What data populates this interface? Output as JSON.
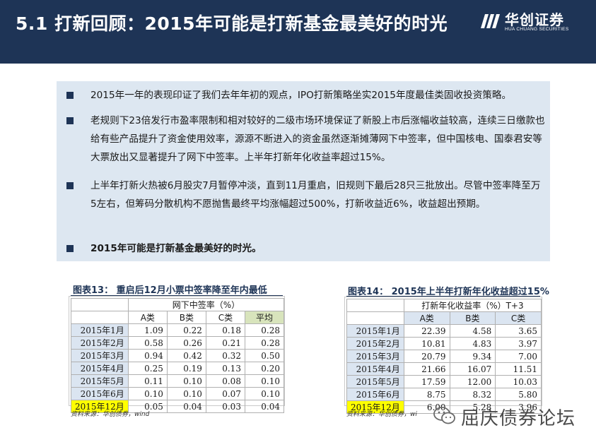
{
  "header": {
    "title": "5.1  打新回顾：2015年可能是打新基金最美好的时光",
    "logo_cn": "华创证券",
    "logo_en": "HUA CHUANG SECURITIES"
  },
  "summary": {
    "bullets": [
      {
        "text": "2015年一年的表现印证了我们去年年初的观点，IPO打新策略坐实2015年度最佳类固收投资策略。",
        "bold": false
      },
      {
        "text": "老规则下23倍发行市盈率限制和相对较好的二级市场环境保证了新股上市后涨幅收益较高，连续三日缴款也给有些产品提升了资金使用效率，源源不断进入的资金虽然逐渐摊薄网下中签率，但中国核电、国泰君安等大票放出又显著提升了网下中签率。上半年打新年化收益率超过15%。",
        "bold": false
      },
      {
        "text": "上半年打新火热被6月股灾7月暂停冲淡，直到11月重启，旧规则下最后28只三批放出。尽管中签率降至万5左右，但筹码分散机构不愿抛售最终平均涨幅超过500%，打新收益近6%，收益超出预期。",
        "bold": false
      },
      {
        "text": "2015年可能是打新基金最美好的时光。",
        "bold": true
      }
    ]
  },
  "figure13": {
    "title": "图表13：  重启后12月小票中签率降至年内最低",
    "header_main": "网下中签率（%）",
    "columns": [
      "A类",
      "B类",
      "C类",
      "平均"
    ],
    "rows": [
      {
        "label": "2015年1月",
        "values": [
          "1.09",
          "0.22",
          "0.18",
          "0.28"
        ]
      },
      {
        "label": "2015年2月",
        "values": [
          "0.58",
          "0.26",
          "0.21",
          "0.28"
        ]
      },
      {
        "label": "2015年3月",
        "values": [
          "0.94",
          "0.42",
          "0.32",
          "0.50"
        ]
      },
      {
        "label": "2015年4月",
        "values": [
          "0.25",
          "0.19",
          "0.13",
          "0.20"
        ]
      },
      {
        "label": "2015年5月",
        "values": [
          "0.11",
          "0.10",
          "0.08",
          "0.10"
        ]
      },
      {
        "label": "2015年6月",
        "values": [
          "0.10",
          "0.10",
          "0.07",
          "0.10"
        ]
      },
      {
        "label": "2015年12月",
        "values": [
          "0.05",
          "0.04",
          "0.03",
          "0.04"
        ],
        "highlight": true
      }
    ],
    "source": "资料来源：华创债券，wind"
  },
  "figure14": {
    "title": "图表14：  2015年上半年打新年化收益超过15%",
    "header_main": "打新年化收益率（%）T+3",
    "columns": [
      "A类",
      "B类",
      "C类"
    ],
    "rows": [
      {
        "label": "2015年1月",
        "values": [
          "22.39",
          "4.58",
          "3.65"
        ]
      },
      {
        "label": "2015年2月",
        "values": [
          "10.81",
          "4.83",
          "3.97"
        ]
      },
      {
        "label": "2015年3月",
        "values": [
          "20.79",
          "9.34",
          "7.00"
        ]
      },
      {
        "label": "2015年4月",
        "values": [
          "21.66",
          "16.07",
          "11.51"
        ]
      },
      {
        "label": "2015年5月",
        "values": [
          "17.59",
          "12.00",
          "10.03"
        ]
      },
      {
        "label": "2015年6月",
        "values": [
          "8.75",
          "8.32",
          "5.80"
        ]
      },
      {
        "label": "2015年12月",
        "values": [
          "6.00",
          "5.28",
          "3.96"
        ],
        "highlight": true
      }
    ],
    "source": "资料来源：华创债券，wi"
  },
  "watermark": {
    "text": "屈庆债券论坛",
    "icon": "wechat-icon"
  },
  "colors": {
    "header_bg": "#1e3456",
    "summary_bg": "#dde7f1",
    "row_label_bg": "#dbe5f1",
    "highlight": "#ffff00",
    "avg_header": "#d8e4bc"
  }
}
